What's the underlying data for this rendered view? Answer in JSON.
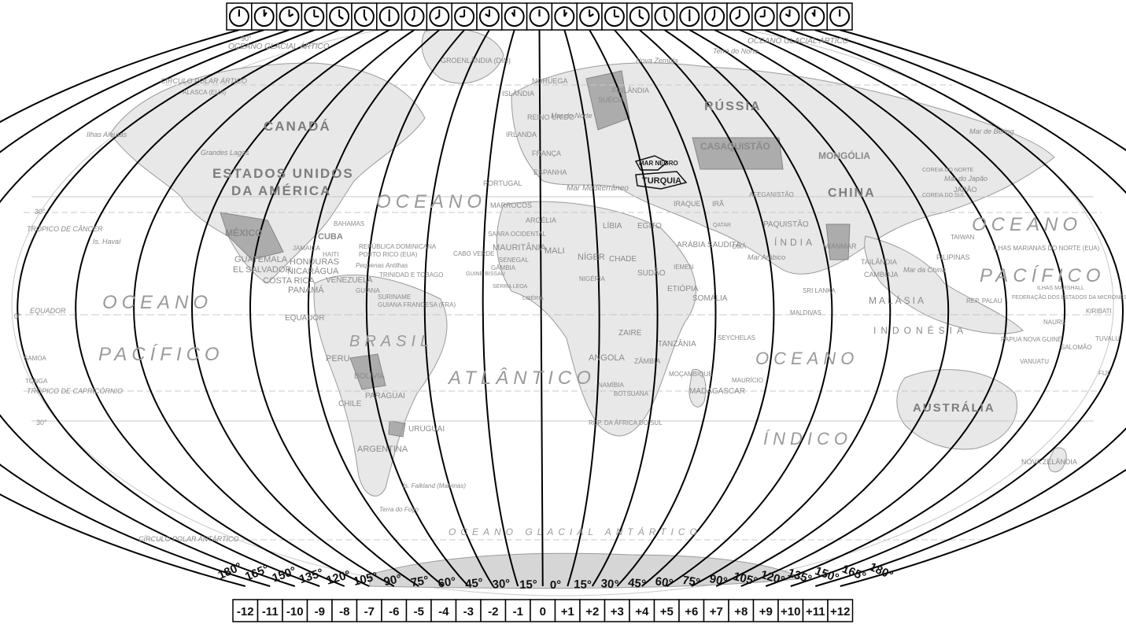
{
  "map": {
    "oceans": [
      {
        "id": "atlantico-oceano",
        "text": "OCEANO"
      },
      {
        "id": "atlantico",
        "text": "ATLÂNTICO"
      },
      {
        "id": "pacifico-w-oceano",
        "text": "OCEANO"
      },
      {
        "id": "pacifico-w",
        "text": "PACÍFICO"
      },
      {
        "id": "pacifico-e-oceano",
        "text": "OCEANO"
      },
      {
        "id": "pacifico-e",
        "text": "PACÍFICO"
      },
      {
        "id": "indico-oceano",
        "text": "OCEANO"
      },
      {
        "id": "indico",
        "text": "ÍNDICO"
      },
      {
        "id": "glacial-antartico",
        "text": "OCEANO GLACIAL ANTÁRTICO"
      },
      {
        "id": "glacial-artico-w",
        "text": "OCEANO GLACIAL ÁRTICO"
      },
      {
        "id": "glacial-artico-e",
        "text": "OCEANO GLACIAL ÁRTICO"
      }
    ],
    "countries": [
      "CANADÁ",
      "ESTADOS UNIDOS",
      "DA AMÉRICA",
      "MÉXICO",
      "CUBA",
      "BAHAMAS",
      "GUATEMALA",
      "EL SALVADOR",
      "HONDURAS",
      "NICARÁGUA",
      "COSTA RICA",
      "PANAMÁ",
      "VENEZUELA",
      "GUIANA",
      "SURINAME",
      "GUIANA FRANCESA (FRA)",
      "EQUADOR",
      "PERU",
      "BRASIL",
      "BOLÍVIA",
      "PARAGUAI",
      "CHILE",
      "URUGUAI",
      "ARGENTINA",
      "Is. Falkland (Malvinas)",
      "Terra do Fogo",
      "GROENLÂNDIA (DIN)",
      "ISLÂNDIA",
      "NORUEGA",
      "SUÉCIA",
      "FINLÂNDIA",
      "REINO UNIDO",
      "IRLANDA",
      "FRANÇA",
      "ESPANHA",
      "PORTUGAL",
      "MARROCOS",
      "ARGÉLIA",
      "SAARA OCIDENTAL",
      "MAURITÂNIA",
      "MALI",
      "NÍGER",
      "LÍBIA",
      "EGITO",
      "CHADE",
      "SUDÃO",
      "ETIÓPIA",
      "SOMÁLIA",
      "NIGÉRIA",
      "ZAIRE",
      "TANZÂNIA",
      "ANGOLA",
      "ZÂMBIA",
      "NAMÍBIA",
      "BOTSUANA",
      "MOÇAMBIQUE",
      "MADAGASCAR",
      "REP. DA ÁFRICA DO SUL",
      "RÚSSIA",
      "CASAQUISTÃO",
      "MONGÓLIA",
      "CHINA",
      "ÍNDIA",
      "PAQUISTÃO",
      "ARÁBIA SAUDITA",
      "IRAQUE",
      "IRÃ",
      "AFEGANISTÃO",
      "TURQUIA",
      "MAR NEGRO",
      "JAPÃO",
      "COREIA DO NORTE",
      "COREIA DO SUL",
      "TAIWAN",
      "FILIPINAS",
      "MIANMAR",
      "TAILÂNDIA",
      "CAMBOJA",
      "MALÁSIA",
      "INDONÉSIA",
      "AUSTRÁLIA",
      "NOVA ZELÂNDIA",
      "PAPUA NOVA GUINÉ",
      "SRI LANKA",
      "MALDIVAS",
      "SEYCHELAS",
      "MAURÍCIO",
      "CABO VERDE",
      "SENEGAL",
      "GÂMBIA",
      "GUINÉ BISSAU",
      "SERRA LEOA",
      "LIBÉRIA",
      "IEMEN",
      "OMÃ",
      "QATAR",
      "Is. Havaí",
      "Ilhas Aleutas",
      "SAMOA",
      "TONGA",
      "FIJI",
      "KIRIBATI",
      "TUVALU",
      "SALOMÃO",
      "VANUATU",
      "NAURU",
      "REP. PALAU",
      "ILHAS MARSHALL",
      "ILHAS MARIANAS DO NORTE (EUA)",
      "FEDERAÇÃO DOS ESTADOS DA MICRONÉSIA",
      "ALASCA (EUA)",
      "Nova Zembla",
      "Terra do Norte",
      "Mar Mediterrâneo",
      "Mar do Norte",
      "Mar Arábico",
      "Mar da China",
      "Mar do Japão",
      "Mar de Bering",
      "Grandes Lagos",
      "REPÚBLICA DOMINICANA",
      "PORTO RICO (EUA)",
      "HAITI",
      "JAMAICA",
      "TRINIDAD E TOBAGO",
      "Pequenas Antilhas"
    ],
    "parallels": [
      "TRÓPICO DE CÂNCER",
      "EQUADOR",
      "TRÓPICO DE CAPRICÓRNIO",
      "CÍRCULO POLAR ÁRTICO",
      "CÍRCULO POLAR ANTÁRTICO"
    ],
    "lat_labels": [
      "90°",
      "30°",
      "0°",
      "30°"
    ],
    "meridian_degrees": [
      "180°",
      "165°",
      "150°",
      "135°",
      "120°",
      "105°",
      "90°",
      "75°",
      "60°",
      "45°",
      "30°",
      "15°",
      "0°",
      "15°",
      "30°",
      "45°",
      "60°",
      "75°",
      "90°",
      "105°",
      "120°",
      "135°",
      "150°",
      "165°",
      "180°"
    ],
    "time_zones": [
      "-12",
      "-11",
      "-10",
      "-9",
      "-8",
      "-7",
      "-6",
      "-5",
      "-4",
      "-3",
      "-2",
      "-1",
      "0",
      "+1",
      "+2",
      "+3",
      "+4",
      "+5",
      "+6",
      "+7",
      "+8",
      "+9",
      "+10",
      "+11",
      "+12"
    ],
    "clock_count": 25
  },
  "colors": {
    "land": "#e6e6e6",
    "land_dark": "#9a9a9a",
    "meridian": "#000000",
    "graticule": "#bdbdbd",
    "text": "#8a8a8a",
    "border": "#000000"
  }
}
